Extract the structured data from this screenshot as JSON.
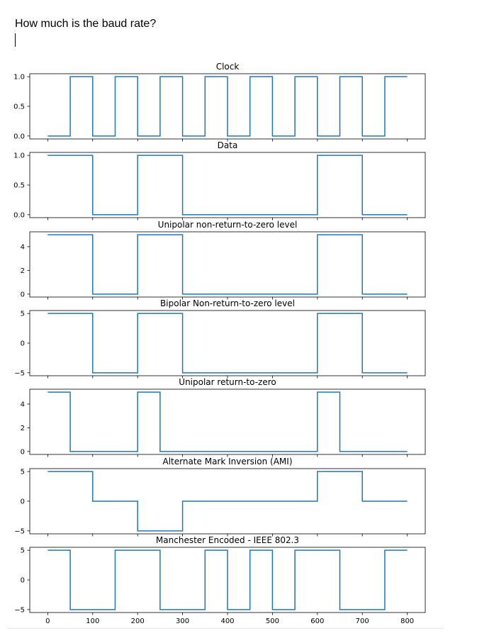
{
  "document": {
    "question": "How much is the baud rate?"
  },
  "chart_data": [
    {
      "type": "line",
      "title": "Clock",
      "x": [
        0,
        50,
        50,
        100,
        100,
        150,
        150,
        200,
        200,
        250,
        250,
        300,
        300,
        350,
        350,
        400,
        400,
        450,
        450,
        500,
        500,
        550,
        550,
        600,
        600,
        650,
        650,
        700,
        700,
        750,
        750,
        800
      ],
      "y": [
        0,
        0,
        1,
        1,
        0,
        0,
        1,
        1,
        0,
        0,
        1,
        1,
        0,
        0,
        1,
        1,
        0,
        0,
        1,
        1,
        0,
        0,
        1,
        1,
        0,
        0,
        1,
        1,
        0,
        0,
        1,
        1
      ],
      "ylim": [
        -0.05,
        1.05
      ],
      "yticks": [
        0.0,
        0.5,
        1.0
      ],
      "ytick_labels": [
        "0.0",
        "0.5",
        "1.0"
      ]
    },
    {
      "type": "line",
      "title": "Data",
      "x": [
        0,
        100,
        100,
        200,
        200,
        300,
        300,
        600,
        600,
        700,
        700,
        800
      ],
      "y": [
        1,
        1,
        0,
        0,
        1,
        1,
        0,
        0,
        1,
        1,
        0,
        0
      ],
      "ylim": [
        -0.05,
        1.05
      ],
      "yticks": [
        0.0,
        0.5,
        1.0
      ],
      "ytick_labels": [
        "0.0",
        "0.5",
        "1.0"
      ]
    },
    {
      "type": "line",
      "title": "Unipolar non-return-to-zero level",
      "x": [
        0,
        100,
        100,
        200,
        200,
        300,
        300,
        600,
        600,
        700,
        700,
        800
      ],
      "y": [
        5,
        5,
        0,
        0,
        5,
        5,
        0,
        0,
        5,
        5,
        0,
        0
      ],
      "ylim": [
        -0.25,
        5.25
      ],
      "yticks": [
        0,
        2,
        4
      ],
      "ytick_labels": [
        "0",
        "2",
        "4"
      ]
    },
    {
      "type": "line",
      "title": "Bipolar Non-return-to-zero level",
      "x": [
        0,
        100,
        100,
        200,
        200,
        300,
        300,
        600,
        600,
        700,
        700,
        800
      ],
      "y": [
        5,
        5,
        -5,
        -5,
        5,
        5,
        -5,
        -5,
        5,
        5,
        -5,
        -5
      ],
      "ylim": [
        -5.5,
        5.5
      ],
      "yticks": [
        -5,
        0,
        5
      ],
      "ytick_labels": [
        "−5",
        "0",
        "5"
      ]
    },
    {
      "type": "line",
      "title": "Unipolar return-to-zero",
      "x": [
        0,
        50,
        50,
        200,
        200,
        250,
        250,
        600,
        600,
        650,
        650,
        800
      ],
      "y": [
        5,
        5,
        0,
        0,
        5,
        5,
        0,
        0,
        5,
        5,
        0,
        0
      ],
      "ylim": [
        -0.25,
        5.25
      ],
      "yticks": [
        0,
        2,
        4
      ],
      "ytick_labels": [
        "0",
        "2",
        "4"
      ]
    },
    {
      "type": "line",
      "title": "Alternate Mark Inversion (AMI)",
      "x": [
        0,
        100,
        100,
        200,
        200,
        300,
        300,
        600,
        600,
        700,
        700,
        800
      ],
      "y": [
        5,
        5,
        0,
        0,
        -5,
        -5,
        0,
        0,
        5,
        5,
        0,
        0
      ],
      "ylim": [
        -5.5,
        5.5
      ],
      "yticks": [
        -5,
        0,
        5
      ],
      "ytick_labels": [
        "−5",
        "0",
        "5"
      ]
    },
    {
      "type": "line",
      "title": "Manchester Encoded - IEEE 802.3",
      "x": [
        0,
        50,
        50,
        150,
        150,
        250,
        250,
        350,
        350,
        400,
        400,
        450,
        450,
        500,
        500,
        550,
        550,
        650,
        650,
        750,
        750,
        800
      ],
      "y": [
        5,
        5,
        -5,
        -5,
        5,
        5,
        -5,
        -5,
        5,
        5,
        -5,
        -5,
        5,
        5,
        -5,
        -5,
        5,
        5,
        -5,
        -5,
        5,
        5
      ],
      "ylim": [
        -5.5,
        5.5
      ],
      "yticks": [
        -5,
        0,
        5
      ],
      "ytick_labels": [
        "−5",
        "0",
        "5"
      ]
    }
  ],
  "xaxis": {
    "xlim": [
      -40,
      840
    ],
    "xticks": [
      0,
      100,
      200,
      300,
      400,
      500,
      600,
      700,
      800
    ],
    "xtick_labels": [
      "0",
      "100",
      "200",
      "300",
      "400",
      "500",
      "600",
      "700",
      "800"
    ]
  },
  "colors": {
    "line": "#1f77b4",
    "axes": "#000000"
  }
}
